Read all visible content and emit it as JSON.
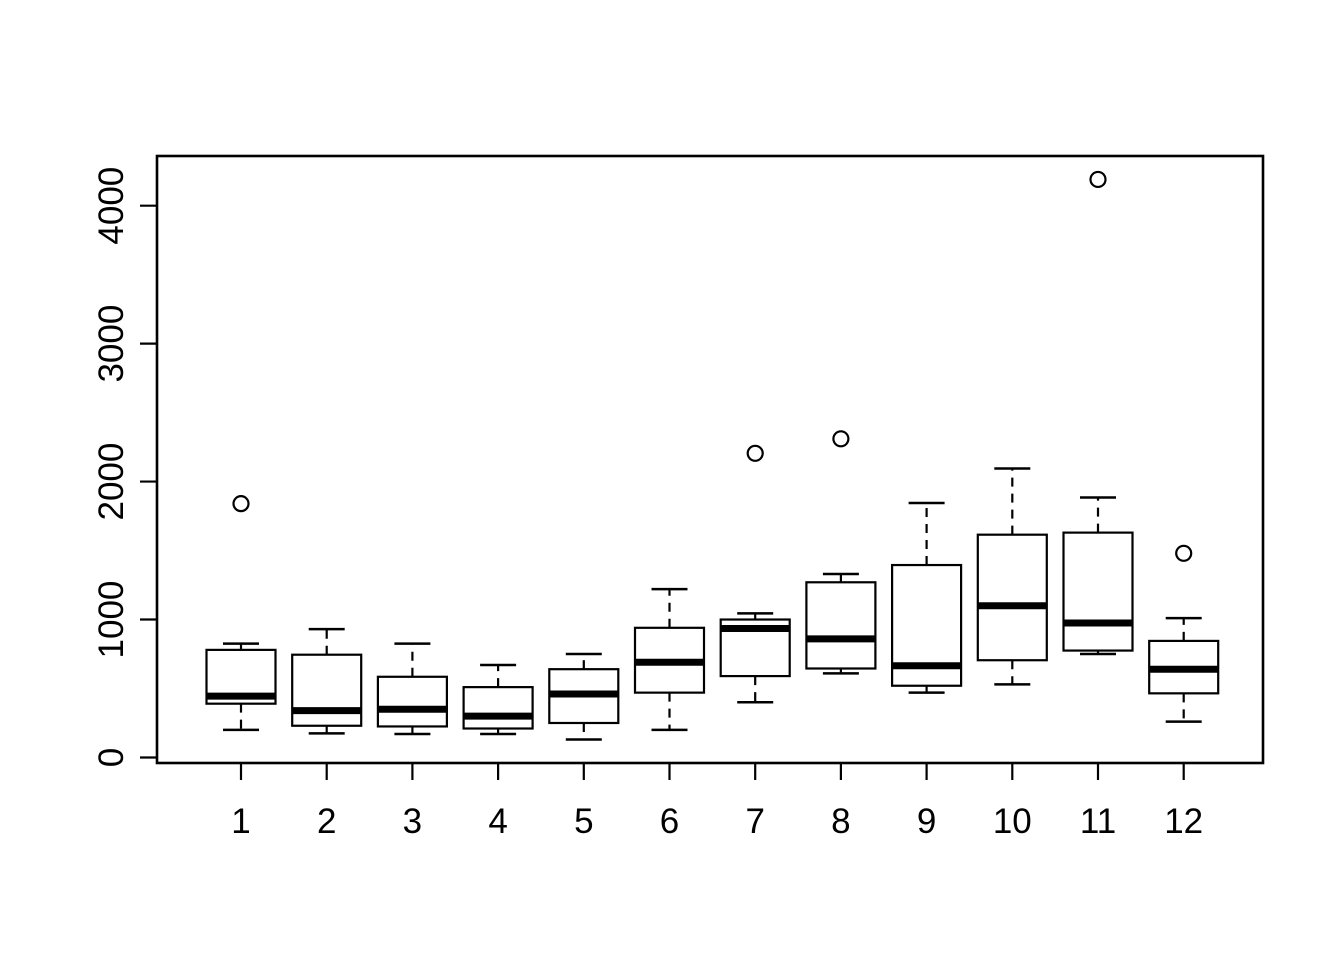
{
  "colors": {
    "stroke": "#000000",
    "box_fill": "#ffffff",
    "background": "#ffffff"
  },
  "chart_data": {
    "type": "boxplot",
    "title": "",
    "subtitle": "",
    "xlabel": "",
    "ylabel": "",
    "grid": false,
    "legend": null,
    "categories": [
      "1",
      "2",
      "3",
      "4",
      "5",
      "6",
      "7",
      "8",
      "9",
      "10",
      "11",
      "12"
    ],
    "ytick_labels": [
      "0",
      "1000",
      "2000",
      "3000",
      "4000"
    ],
    "yticks": [
      0,
      1000,
      2000,
      3000,
      4000
    ],
    "ylim": [
      -40,
      4360
    ],
    "boxes": [
      {
        "category": "1",
        "whisker_low": 200,
        "q1": 390,
        "median": 445,
        "q3": 780,
        "whisker_high": 825,
        "outliers": [
          1840
        ]
      },
      {
        "category": "2",
        "whisker_low": 175,
        "q1": 230,
        "median": 340,
        "q3": 745,
        "whisker_high": 930,
        "outliers": []
      },
      {
        "category": "3",
        "whisker_low": 170,
        "q1": 225,
        "median": 350,
        "q3": 585,
        "whisker_high": 825,
        "outliers": []
      },
      {
        "category": "4",
        "whisker_low": 170,
        "q1": 210,
        "median": 300,
        "q3": 510,
        "whisker_high": 670,
        "outliers": []
      },
      {
        "category": "5",
        "whisker_low": 130,
        "q1": 250,
        "median": 460,
        "q3": 640,
        "whisker_high": 750,
        "outliers": []
      },
      {
        "category": "6",
        "whisker_low": 200,
        "q1": 470,
        "median": 690,
        "q3": 940,
        "whisker_high": 1220,
        "outliers": []
      },
      {
        "category": "7",
        "whisker_low": 400,
        "q1": 590,
        "median": 935,
        "q3": 1000,
        "whisker_high": 1045,
        "outliers": [
          2205
        ]
      },
      {
        "category": "8",
        "whisker_low": 610,
        "q1": 645,
        "median": 860,
        "q3": 1270,
        "whisker_high": 1330,
        "outliers": [
          2310
        ]
      },
      {
        "category": "9",
        "whisker_low": 470,
        "q1": 520,
        "median": 665,
        "q3": 1395,
        "whisker_high": 1845,
        "outliers": []
      },
      {
        "category": "10",
        "whisker_low": 530,
        "q1": 705,
        "median": 1100,
        "q3": 1615,
        "whisker_high": 2095,
        "outliers": []
      },
      {
        "category": "11",
        "whisker_low": 750,
        "q1": 775,
        "median": 975,
        "q3": 1630,
        "whisker_high": 1885,
        "outliers": [
          4190
        ]
      },
      {
        "category": "12",
        "whisker_low": 260,
        "q1": 465,
        "median": 640,
        "q3": 845,
        "whisker_high": 1010,
        "outliers": [
          1480
        ]
      }
    ]
  }
}
